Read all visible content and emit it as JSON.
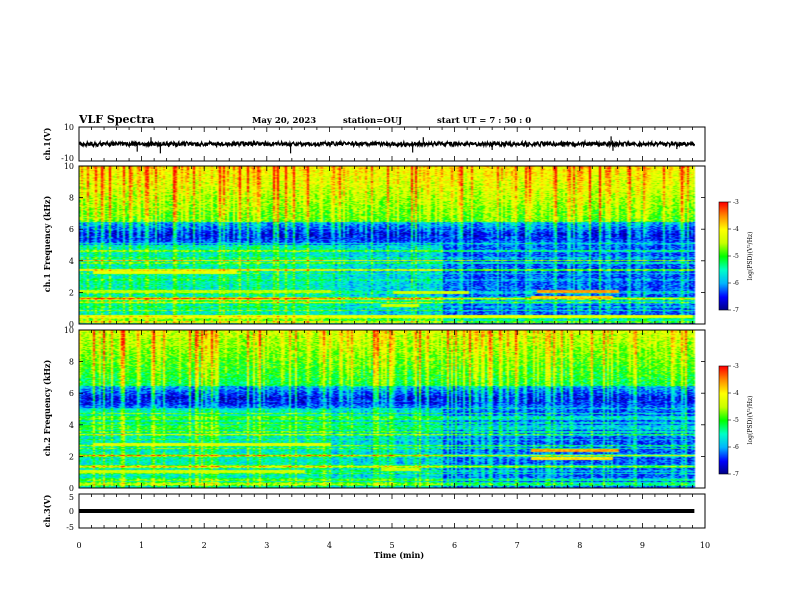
{
  "header": {
    "title": "VLF Spectra",
    "date": "May 20, 2023",
    "station": "station=OUJ",
    "start": "start  UT =   7 : 50 : 0"
  },
  "colors": {
    "colormap": [
      "#000080",
      "#0000ff",
      "#00b4ff",
      "#00ffc8",
      "#00ff00",
      "#c8ff00",
      "#ffff00",
      "#ff8c00",
      "#ff0000",
      "#ffffff"
    ]
  },
  "chart_data": [
    {
      "type": "line",
      "panel": "ch1-waveform",
      "ylabel": "ch.1(V)",
      "ylim": [
        -10,
        10
      ],
      "yticks": [
        "10",
        "-10"
      ],
      "baseline": 0,
      "spikes": [
        {
          "t": 0.93,
          "v": -4.5
        },
        {
          "t": 1.3,
          "v": -5.5
        },
        {
          "t": 1.15,
          "v": 4.0
        },
        {
          "t": 3.38,
          "v": -5.5
        },
        {
          "t": 5.33,
          "v": -5.0
        },
        {
          "t": 5.5,
          "v": 4.0
        },
        {
          "t": 6.6,
          "v": -3.5
        },
        {
          "t": 8.5,
          "v": 4.5
        },
        {
          "t": 8.53,
          "v": -4.0
        },
        {
          "t": 9.55,
          "v": -3.0
        }
      ]
    },
    {
      "type": "heatmap",
      "panel": "ch1-spectrogram",
      "ylabel": "ch.1 Frequency  (kHz)",
      "ylim": [
        0,
        10
      ],
      "yticks": [
        "0",
        "2",
        "4",
        "6",
        "8",
        "10"
      ],
      "colorbar": {
        "label": "log(PSD)(V²/Hz)",
        "range": [
          -7,
          -3
        ],
        "ticks": [
          "-3",
          "-4",
          "-5",
          "-6",
          "-7"
        ]
      },
      "lines_khz": [
        {
          "f": 3.3,
          "t0": 0.2,
          "t1": 2.5,
          "level": -4.2
        },
        {
          "f": 2.1,
          "t0": 0.0,
          "t1": 4.0,
          "level": -4.5
        },
        {
          "f": 2.0,
          "t0": 5.0,
          "t1": 6.2,
          "level": -4.4
        },
        {
          "f": 2.1,
          "t0": 7.3,
          "t1": 8.6,
          "level": -3.6
        },
        {
          "f": 1.7,
          "t0": 7.2,
          "t1": 8.5,
          "level": -3.8
        },
        {
          "f": 0.5,
          "t0": 0.0,
          "t1": 9.8,
          "level": -4.2
        },
        {
          "f": 1.2,
          "t0": 4.8,
          "t1": 5.4,
          "level": -4.4
        }
      ]
    },
    {
      "type": "heatmap",
      "panel": "ch2-spectrogram",
      "ylabel": "ch.2 Frequency  (kHz)",
      "ylim": [
        0,
        10
      ],
      "yticks": [
        "0",
        "2",
        "4",
        "6",
        "8",
        "10"
      ],
      "colorbar": {
        "label": "log(PSD)(V²/Hz)",
        "range": [
          -7,
          -3
        ],
        "ticks": [
          "-3",
          "-4",
          "-5",
          "-6",
          "-7"
        ]
      },
      "lines_khz": [
        {
          "f": 2.8,
          "t0": 0.2,
          "t1": 4.0,
          "level": -4.3
        },
        {
          "f": 2.4,
          "t0": 7.2,
          "t1": 8.6,
          "level": -3.6
        },
        {
          "f": 1.9,
          "t0": 7.2,
          "t1": 8.5,
          "level": -3.9
        },
        {
          "f": 1.1,
          "t0": 0.0,
          "t1": 3.6,
          "level": -4.4
        },
        {
          "f": 1.2,
          "t0": 4.8,
          "t1": 5.4,
          "level": -4.4
        }
      ]
    },
    {
      "type": "line",
      "panel": "ch3-waveform",
      "ylabel": "ch.3(V)",
      "ylim": [
        -5,
        5
      ],
      "yticks": [
        "5",
        "0",
        "-5"
      ],
      "baseline": 0
    }
  ],
  "xaxis": {
    "label": "Time  (min)",
    "range": [
      0,
      10
    ],
    "ticks": [
      "0",
      "1",
      "2",
      "3",
      "4",
      "5",
      "6",
      "7",
      "8",
      "9",
      "10"
    ],
    "data_end_min": 9.83
  }
}
